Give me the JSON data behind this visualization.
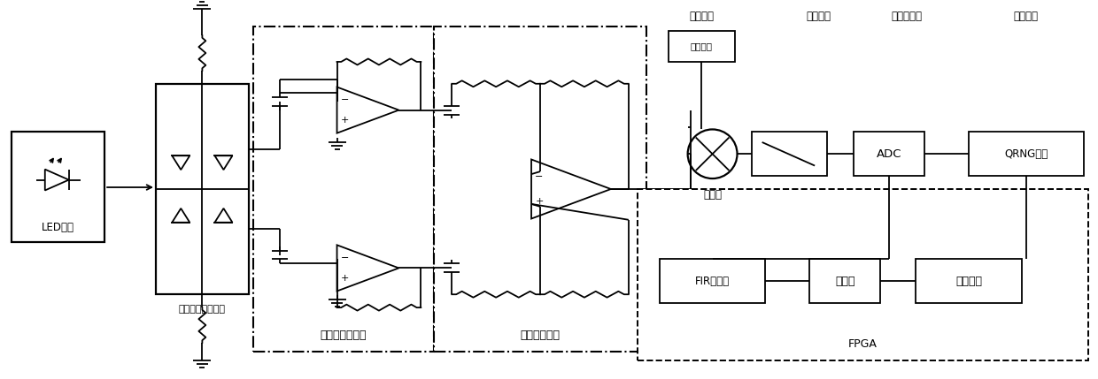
{
  "fig_width": 12.4,
  "fig_height": 4.29,
  "dpi": 100,
  "lw": 1.3,
  "lc": "#000000",
  "bg": "#ffffff",
  "labels": {
    "LED": "LED光源",
    "detector": "四象限光电探测器",
    "pre_amp": "前置运算放大器",
    "diff_amp": "全差分放大器",
    "mult_lbl": "乘法器",
    "hf_box": "高频正弦",
    "hf_lbl": "高频正弦",
    "lpf_lbl": "低通滤波",
    "adc_lbl": "模数转换器",
    "out_lbl": "信号输出",
    "adc_box": "ADC",
    "qrng_box": "QRNG序列",
    "fir_box": "FIR滤波器",
    "dc_box": "消直流",
    "dist_box": "分布处理",
    "fpga_lbl": "FPGA"
  }
}
